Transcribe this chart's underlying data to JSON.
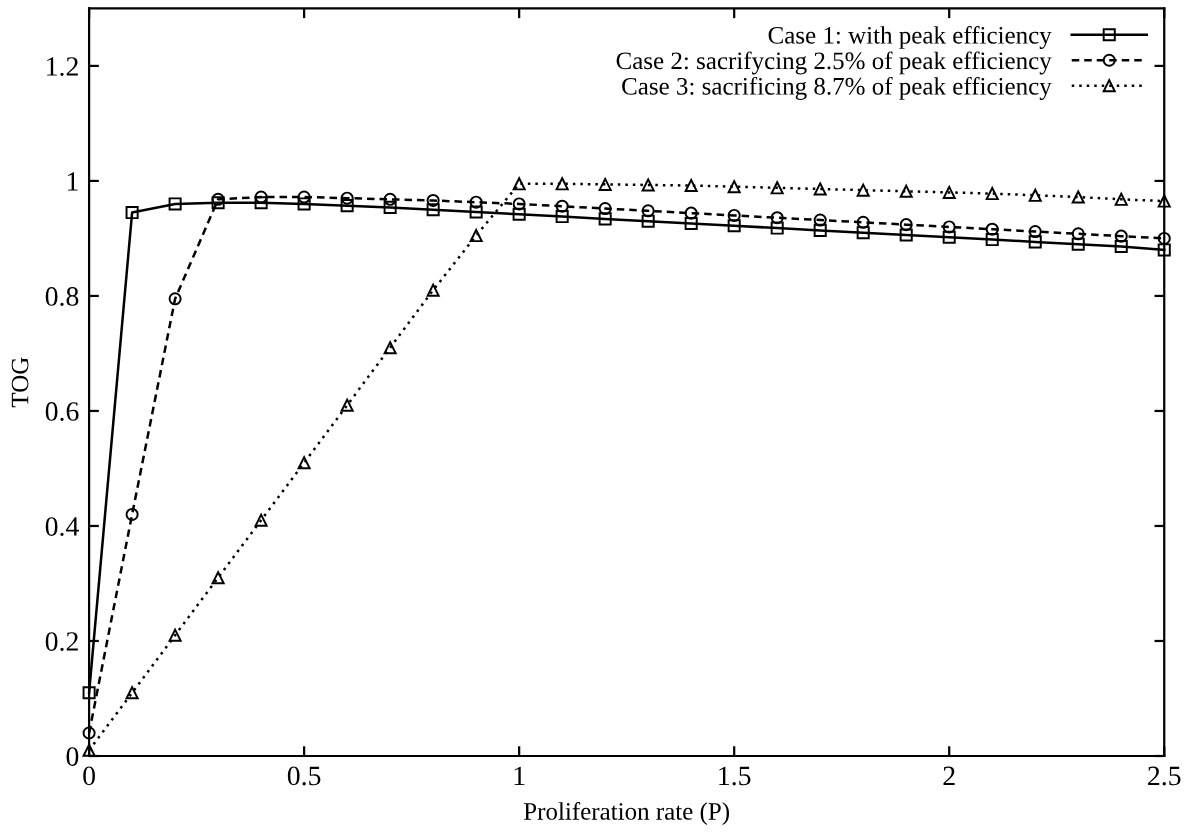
{
  "chart_data": {
    "type": "line",
    "xlabel": "Proliferation rate (P)",
    "ylabel": "TOG",
    "x": [
      0,
      0.1,
      0.2,
      0.3,
      0.4,
      0.5,
      0.6,
      0.7,
      0.8,
      0.9,
      1.0,
      1.1,
      1.2,
      1.3,
      1.4,
      1.5,
      1.6,
      1.7,
      1.8,
      1.9,
      2.0,
      2.1,
      2.2,
      2.3,
      2.4,
      2.5
    ],
    "series": [
      {
        "name": "Case 1: with peak efficiency",
        "color": "#000000",
        "marker": "square",
        "line_style": "solid",
        "values": [
          0.11,
          0.945,
          0.96,
          0.962,
          0.962,
          0.96,
          0.957,
          0.954,
          0.95,
          0.946,
          0.942,
          0.938,
          0.934,
          0.93,
          0.926,
          0.922,
          0.918,
          0.914,
          0.91,
          0.906,
          0.902,
          0.898,
          0.894,
          0.89,
          0.886,
          0.88
        ]
      },
      {
        "name": "Case 2: sacrifycing 2.5% of peak efficiency",
        "color": "#000000",
        "marker": "circle",
        "line_style": "dashed",
        "values": [
          0.04,
          0.42,
          0.795,
          0.968,
          0.972,
          0.972,
          0.97,
          0.968,
          0.966,
          0.963,
          0.96,
          0.956,
          0.952,
          0.948,
          0.944,
          0.94,
          0.936,
          0.932,
          0.928,
          0.924,
          0.92,
          0.916,
          0.912,
          0.908,
          0.904,
          0.9
        ]
      },
      {
        "name": "Case 3: sacrificing 8.7% of peak efficiency",
        "color": "#000000",
        "marker": "triangle",
        "line_style": "dotted",
        "values": [
          0.01,
          0.11,
          0.21,
          0.31,
          0.41,
          0.51,
          0.61,
          0.71,
          0.81,
          0.905,
          0.995,
          0.995,
          0.994,
          0.993,
          0.992,
          0.99,
          0.988,
          0.986,
          0.984,
          0.982,
          0.98,
          0.978,
          0.975,
          0.972,
          0.968,
          0.965
        ]
      }
    ],
    "xlim": [
      0,
      2.5
    ],
    "xticks": [
      0,
      0.5,
      1,
      1.5,
      2,
      2.5
    ],
    "ylim": [
      0,
      1.3
    ],
    "yticks": [
      0,
      0.2,
      0.4,
      0.6,
      0.8,
      1,
      1.2
    ],
    "grid": false,
    "legend": "top right"
  }
}
